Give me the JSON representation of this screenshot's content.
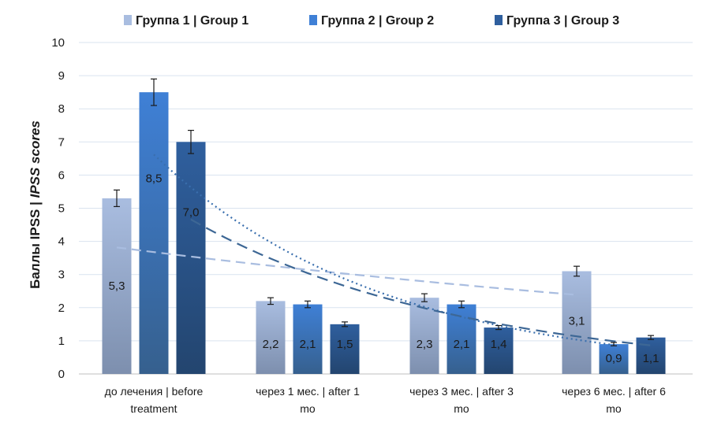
{
  "chart_data": {
    "type": "bar",
    "ylabel_main": "Баллы IPSS | ",
    "ylabel_italic": "IPSS scores",
    "xlabel": "",
    "ylim": [
      0,
      10
    ],
    "yticks": [
      0,
      1,
      2,
      3,
      4,
      5,
      6,
      7,
      8,
      9,
      10
    ],
    "categories": [
      {
        "line1": "до лечения | before",
        "line2": "treatment"
      },
      {
        "line1": "через 1 мес. | after 1",
        "line2": "mo"
      },
      {
        "line1": "через 3 мес. | after 3",
        "line2": "mo"
      },
      {
        "line1": "через 6 мес. |  after 6",
        "line2": "mo"
      }
    ],
    "series": [
      {
        "name": "Группа 1 | Group 1",
        "values": [
          5.3,
          2.2,
          2.3,
          3.1
        ],
        "errors": [
          0.25,
          0.1,
          0.12,
          0.15
        ],
        "labels": [
          "5,3",
          "2,2",
          "2,3",
          "3,1"
        ],
        "color_top": "#a9bde0",
        "color_bottom": "#7d8fae",
        "legend_color": "#a9bde0",
        "trend_style": "dashed-light",
        "trend_color": "#a9bde0"
      },
      {
        "name": "Группа 2 | Group 2",
        "values": [
          8.5,
          2.1,
          2.1,
          0.9
        ],
        "errors": [
          0.4,
          0.1,
          0.1,
          0.05
        ],
        "labels": [
          "8,5",
          "2,1",
          "2,1",
          "0,9"
        ],
        "color_top": "#3f80d6",
        "color_bottom": "#36608e",
        "legend_color": "#3f80d6",
        "trend_style": "dotted",
        "trend_color": "#3a6fae"
      },
      {
        "name": "Группа 3 | Group 3",
        "values": [
          7.0,
          1.5,
          1.4,
          1.1
        ],
        "errors": [
          0.35,
          0.07,
          0.06,
          0.06
        ],
        "labels": [
          "7,0",
          "1,5",
          "1,4",
          "1,1"
        ],
        "color_top": "#2f5f9e",
        "color_bottom": "#23456f",
        "legend_color": "#2f5f9e",
        "trend_style": "dashed",
        "trend_color": "#3d6795"
      }
    ],
    "grid": true,
    "legend_position": "top"
  }
}
